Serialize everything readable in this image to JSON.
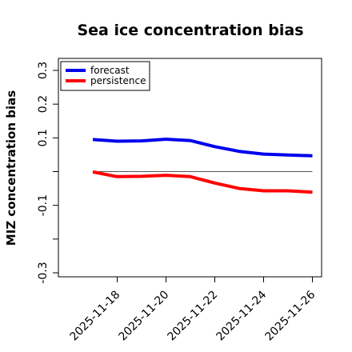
{
  "chart_data": {
    "type": "line",
    "title": "Sea ice concentration bias",
    "xlabel": "",
    "ylabel": "MIZ concentration bias",
    "x": [
      "2025-11-17",
      "2025-11-18",
      "2025-11-19",
      "2025-11-20",
      "2025-11-21",
      "2025-11-22",
      "2025-11-23",
      "2025-11-24",
      "2025-11-25",
      "2025-11-26"
    ],
    "series": [
      {
        "name": "forecast",
        "color": "#0000ee",
        "values": [
          0.095,
          0.09,
          0.091,
          0.096,
          0.092,
          0.074,
          0.06,
          0.052,
          0.049,
          0.047
        ]
      },
      {
        "name": "persistence",
        "color": "#ff0000",
        "values": [
          -0.001,
          -0.015,
          -0.014,
          -0.011,
          -0.015,
          -0.034,
          -0.05,
          -0.057,
          -0.057,
          -0.061
        ]
      }
    ],
    "ylim": [
      -0.3,
      0.3
    ],
    "yticks": [
      -0.3,
      -0.2,
      -0.1,
      0.0,
      0.1,
      0.2,
      0.3
    ],
    "ytick_labels": [
      "-0.3",
      "",
      "-0.1",
      "",
      "0.1",
      "0.2",
      "0.3"
    ],
    "xticks": [
      "2025-11-18",
      "2025-11-20",
      "2025-11-22",
      "2025-11-24",
      "2025-11-26"
    ],
    "xtick_labels": [
      "2025-11-18",
      "2025-11-20",
      "2025-11-22",
      "2025-11-24",
      "2025-11-26"
    ],
    "highlight_tick": "2025-11-18",
    "highlight_color": "#228b22",
    "reference_line": 0,
    "grid": false,
    "legend_position": "top-left"
  }
}
